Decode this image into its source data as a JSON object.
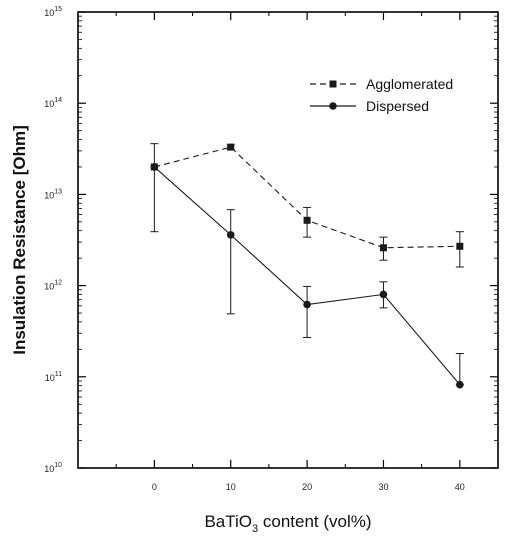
{
  "chart_data": {
    "type": "line",
    "title": "",
    "xlabel": "BaTiO",
    "xlabel_sub": "3",
    "xlabel_suffix": " content (vol%)",
    "ylabel": "Insulation Resistance [Ohm]",
    "x_ticks": [
      "0",
      "10",
      "20",
      "30",
      "40"
    ],
    "x_tick_values": [
      0,
      10,
      20,
      30,
      40
    ],
    "xlim": [
      -10,
      45
    ],
    "y_scale": "log",
    "ylim": [
      10000000000.0,
      1000000000000000.0
    ],
    "y_ticks": [
      {
        "value": 10000000000.0,
        "base": "10",
        "exp": "10"
      },
      {
        "value": 100000000000.0,
        "base": "10",
        "exp": "11"
      },
      {
        "value": 1000000000000.0,
        "base": "10",
        "exp": "12"
      },
      {
        "value": 10000000000000.0,
        "base": "10",
        "exp": "13"
      },
      {
        "value": 100000000000000.0,
        "base": "10",
        "exp": "14"
      },
      {
        "value": 1000000000000000.0,
        "base": "10",
        "exp": "15"
      }
    ],
    "grid": false,
    "legend_position": "top-right",
    "series": [
      {
        "name": "Agglomerated",
        "marker": "square",
        "line_style": "dashed",
        "x": [
          0,
          10,
          20,
          30,
          40
        ],
        "y": [
          20000000000000.0,
          33000000000000.0,
          5200000000000.0,
          2600000000000.0,
          2700000000000.0
        ],
        "err_low": [
          20000000000000.0,
          31000000000000.0,
          3400000000000.0,
          1900000000000.0,
          1600000000000.0
        ],
        "err_high": [
          20000000000000.0,
          35000000000000.0,
          7200000000000.0,
          3400000000000.0,
          3900000000000.0
        ]
      },
      {
        "name": "Dispersed",
        "marker": "circle",
        "line_style": "solid",
        "x": [
          0,
          10,
          20,
          30,
          40
        ],
        "y": [
          20000000000000.0,
          3600000000000.0,
          620000000000.0,
          800000000000.0,
          82000000000.0
        ],
        "err_low": [
          3900000000000.0,
          490000000000.0,
          270000000000.0,
          570000000000.0,
          82000000000.0
        ],
        "err_high": [
          36000000000000.0,
          6800000000000.0,
          980000000000.0,
          1100000000000.0,
          180000000000.0
        ]
      }
    ],
    "colors": {
      "line": "#1a1a1a",
      "axis": "#000000"
    }
  }
}
